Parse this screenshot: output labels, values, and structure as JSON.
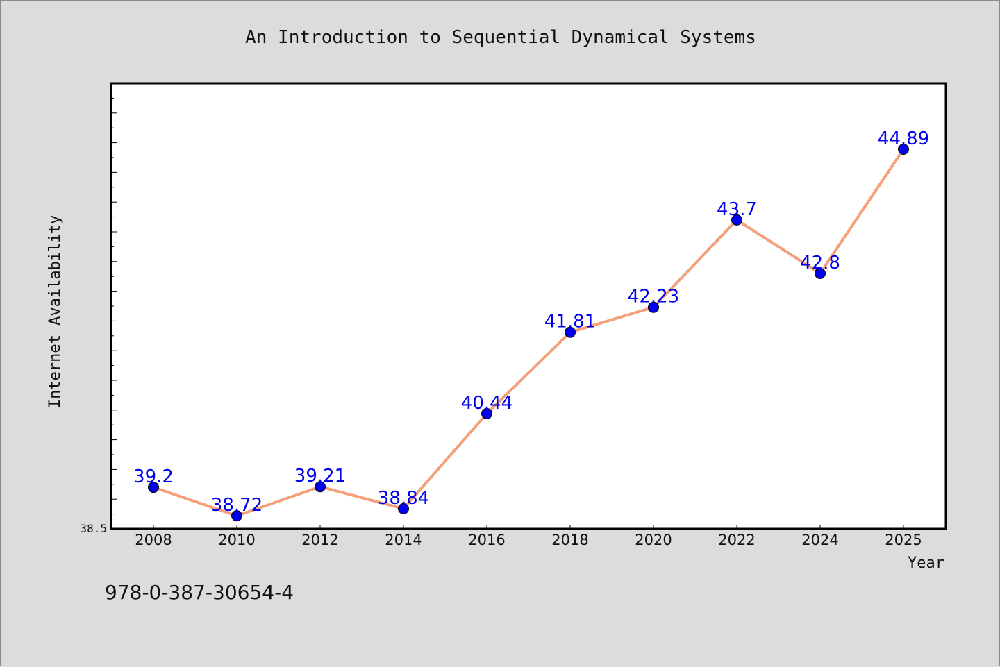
{
  "chart_data": {
    "type": "line",
    "title": "An Introduction to Sequential Dynamical Systems",
    "xlabel": "Year",
    "ylabel": "Internet Availability",
    "categories": [
      "2008",
      "2010",
      "2012",
      "2014",
      "2016",
      "2018",
      "2020",
      "2022",
      "2024",
      "2025"
    ],
    "series": [
      {
        "values": [
          39.2,
          38.72,
          39.21,
          38.84,
          40.44,
          41.81,
          42.23,
          43.7,
          42.8,
          44.89
        ],
        "data_labels": [
          "39.2",
          "38.72",
          "39.21",
          "38.84",
          "40.44",
          "41.81",
          "42.23",
          "43.7",
          "42.8",
          "44.89"
        ]
      }
    ],
    "ylim": [
      38.5,
      46.0
    ],
    "y_tick_labels": [
      "38.5"
    ],
    "grid": false,
    "line_color": "#f4a07a",
    "marker_color": "#0000ee",
    "label_color": "#0000ee"
  },
  "footer": {
    "isbn": "978-0-387-30654-4"
  }
}
